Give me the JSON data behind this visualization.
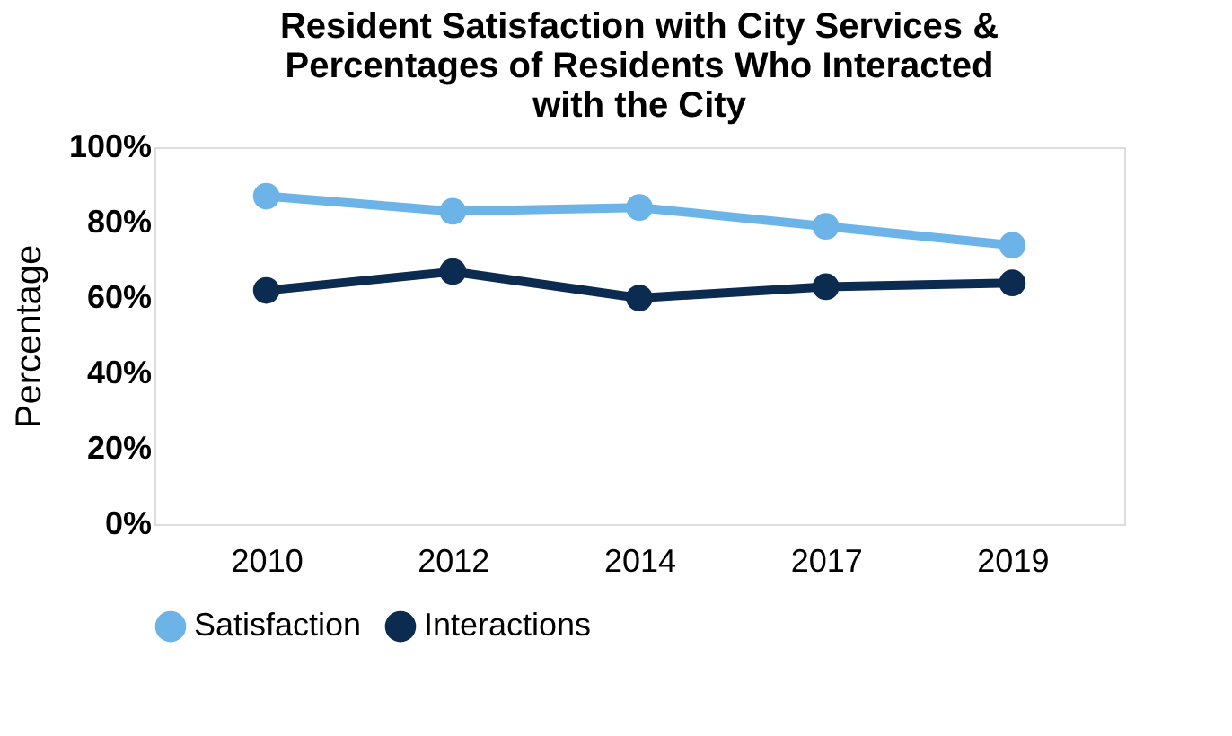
{
  "chart_data": {
    "type": "line",
    "title": "Resident Satisfaction with City Services & Percentages of Residents Who Interacted with the City",
    "ylabel": "Percentage",
    "categories": [
      "2010",
      "2012",
      "2014",
      "2017",
      "2019"
    ],
    "series": [
      {
        "name": "Satisfaction",
        "color": "#6cb4e8",
        "values": [
          87,
          83,
          84,
          79,
          74
        ]
      },
      {
        "name": "Interactions",
        "color": "#0b2c50",
        "values": [
          62,
          67,
          60,
          63,
          64
        ]
      }
    ],
    "ylim": [
      0,
      100
    ],
    "yticks": [
      {
        "value": 0,
        "label": "0%"
      },
      {
        "value": 20,
        "label": "20%"
      },
      {
        "value": 40,
        "label": "40%"
      },
      {
        "value": 60,
        "label": "60%"
      },
      {
        "value": 80,
        "label": "80%"
      },
      {
        "value": 100,
        "label": "100%"
      }
    ],
    "grid": false,
    "legend": "bottom",
    "marker": "circle",
    "line_style": "solid"
  }
}
